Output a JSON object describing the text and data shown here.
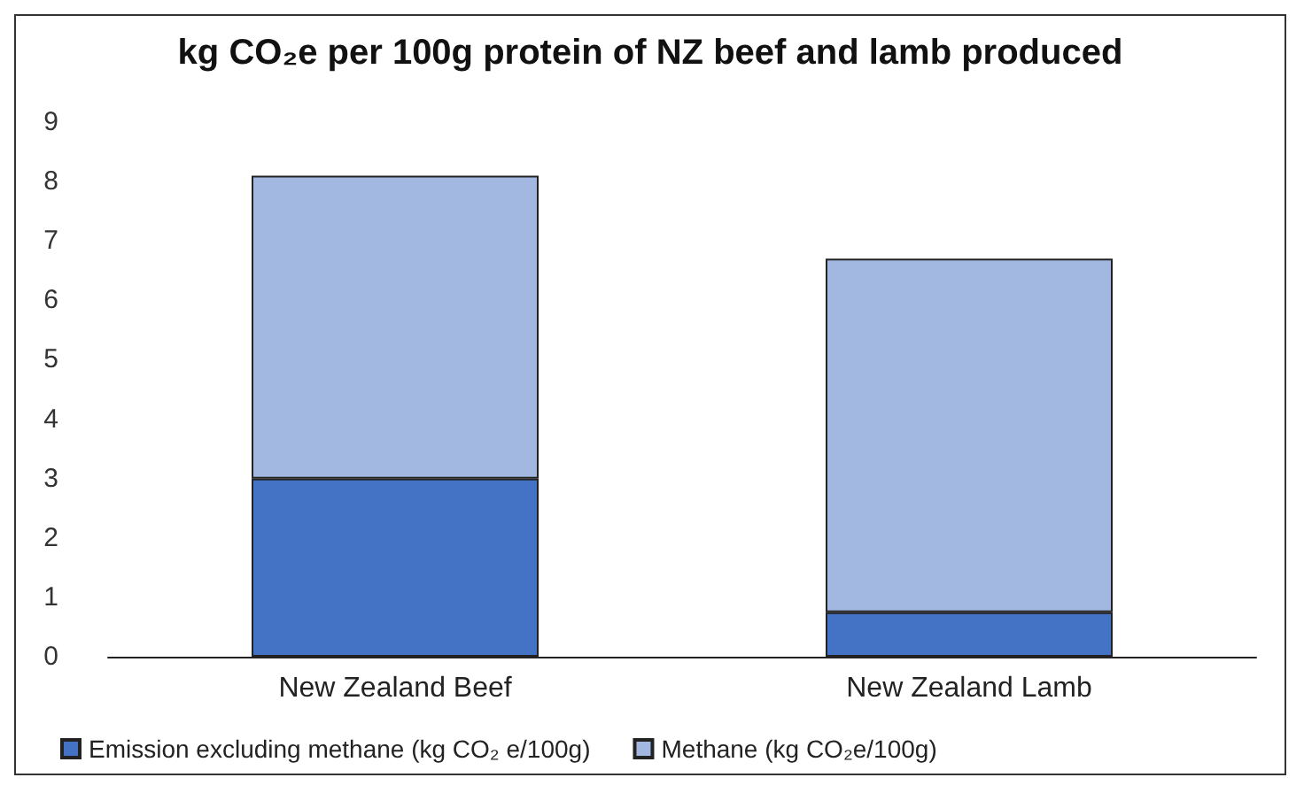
{
  "chart_data": {
    "type": "bar",
    "title": "kg CO₂e per 100g protein of NZ beef and lamb produced",
    "categories": [
      "New Zealand Beef",
      "New Zealand Lamb"
    ],
    "stacked": true,
    "series": [
      {
        "name": "Emission excluding methane (kg CO₂ e/100g)",
        "color": "#4472c4",
        "values": [
          3.0,
          0.75
        ]
      },
      {
        "name": "Methane (kg CO₂e/100g)",
        "color": "#a2b8e0",
        "values": [
          5.1,
          5.95
        ]
      }
    ],
    "ylim": [
      0,
      9
    ],
    "yticks": [
      0,
      1,
      2,
      3,
      4,
      5,
      6,
      7,
      8,
      9
    ],
    "grid": false,
    "legend": "bottom left"
  }
}
